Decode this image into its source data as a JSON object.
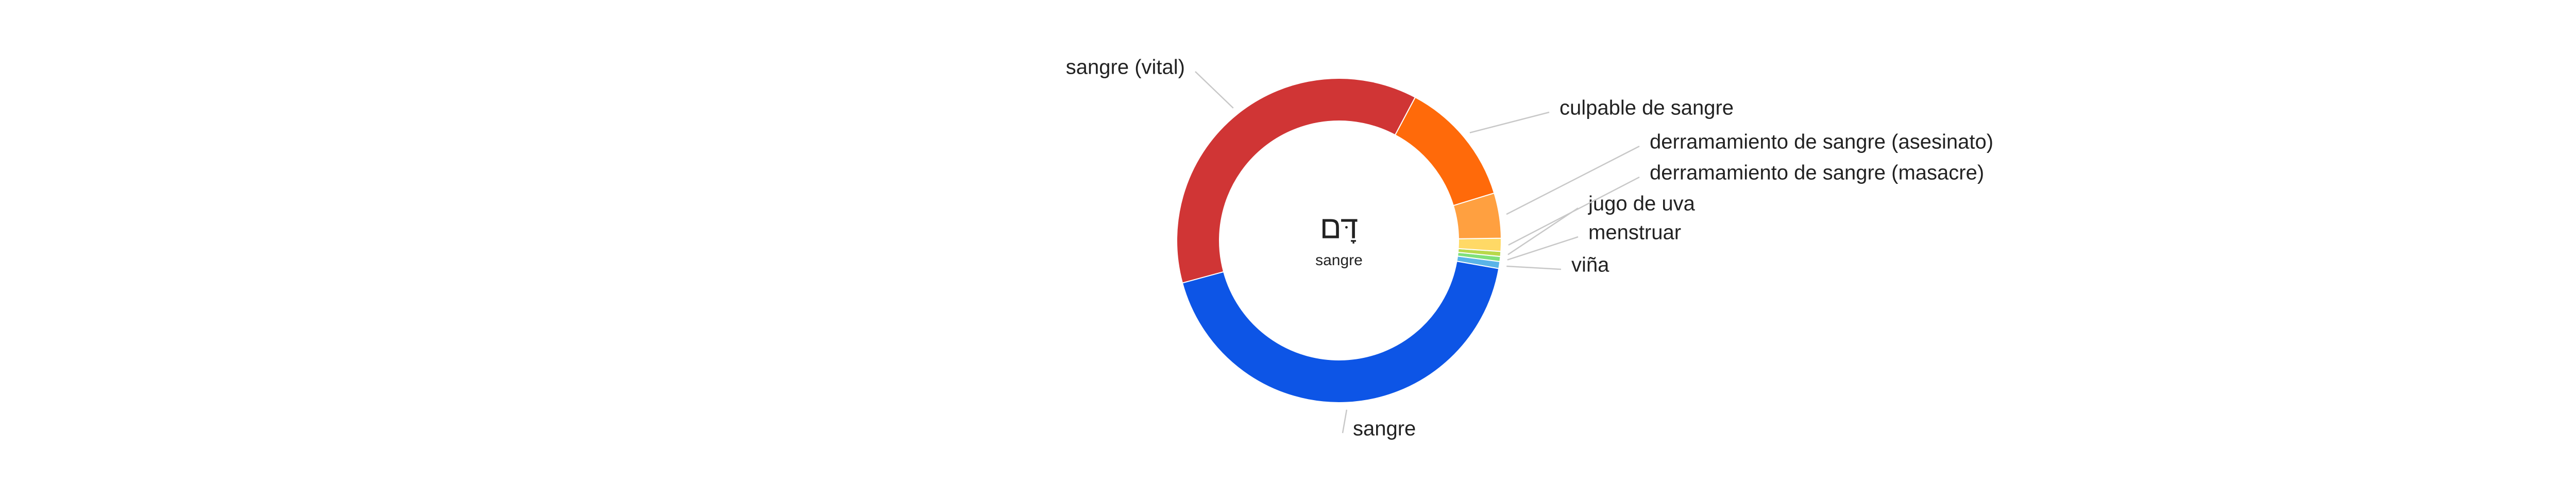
{
  "chart_data": {
    "type": "pie",
    "title": "דָּם",
    "subtitle": "sangre",
    "categories": [
      "sangre",
      "sangre (vital)",
      "culpable de sangre",
      "derramamiento de sangre (asesinato)",
      "derramamiento de sangre (masacre)",
      "jugo de uva",
      "menstruar",
      "viña"
    ],
    "values": [
      43,
      37,
      12.5,
      4.5,
      1.3,
      0.5,
      0.5,
      0.7
    ],
    "colors": [
      "#0d55e6",
      "#d03535",
      "#ff6a0a",
      "#ffa040",
      "#ffd966",
      "#b9d84a",
      "#7fe07a",
      "#5ab4e8"
    ]
  }
}
